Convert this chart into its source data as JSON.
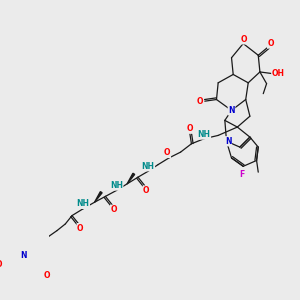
{
  "background_color": "#ebebeb",
  "bond_color": "#1a1a1a",
  "atom_colors": {
    "O": "#ff0000",
    "N": "#0000cd",
    "F": "#cc00cc",
    "C": "#1a1a1a",
    "NH": "#008b8b",
    "OH": "#ff0000"
  },
  "lw": 0.9,
  "fs": 5.5,
  "fs_small": 5.0
}
